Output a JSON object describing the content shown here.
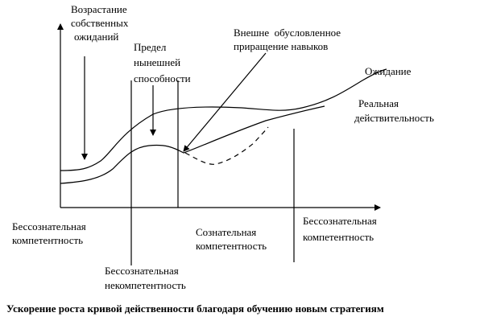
{
  "labels": {
    "expectation_growth": [
      "Возрастание",
      "собственных",
      "ожиданий"
    ],
    "limit": [
      "Предел",
      "нынешней",
      "способности"
    ],
    "external": [
      "Внешне  обусловленное",
      "приращение навыков"
    ],
    "expectation": [
      "Ожидание"
    ],
    "reality": [
      "Реальная",
      "действительность"
    ],
    "zone_1": [
      "Бессознательная",
      "компетентность"
    ],
    "zone_2": [
      "Бессознательная",
      "некомпетентность"
    ],
    "zone_3": [
      "Сознательная",
      "компетентность"
    ],
    "zone_4": [
      "Бессознательная",
      "компетентность"
    ]
  },
  "caption": "Ускорение роста кривой действенности благодаря обучению новым стратегиям"
}
